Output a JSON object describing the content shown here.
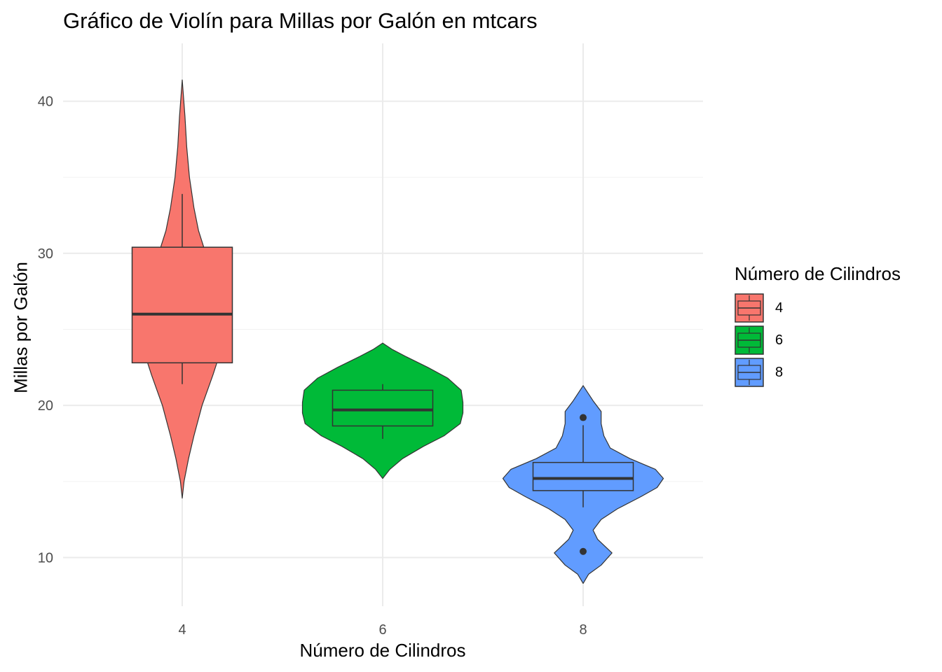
{
  "chart_data": {
    "type": "violin",
    "title": "Gráfico de Violín para Millas por Galón en mtcars",
    "xlabel": "Número de Cilindros",
    "ylabel": "Millas por Galón",
    "categories": [
      "4",
      "6",
      "8"
    ],
    "ylim": [
      6.8,
      43.8
    ],
    "yticks": [
      10,
      20,
      30,
      40
    ],
    "grid": true,
    "legend": {
      "title": "Número de Cilindros",
      "placement": "right",
      "entries": [
        "4",
        "6",
        "8"
      ]
    },
    "series": [
      {
        "category": "4",
        "color": "#F8766D",
        "box": {
          "lower_whisker": 21.4,
          "q1": 22.8,
          "median": 26.0,
          "q3": 30.4,
          "upper_whisker": 33.9
        },
        "outliers": [],
        "density": [
          [
            13.9,
            0
          ],
          [
            15.0,
            0.02
          ],
          [
            16.5,
            0.07
          ],
          [
            18.0,
            0.13
          ],
          [
            20.0,
            0.22
          ],
          [
            22.0,
            0.34
          ],
          [
            24.0,
            0.45
          ],
          [
            26.0,
            0.45
          ],
          [
            28.0,
            0.36
          ],
          [
            30.0,
            0.26
          ],
          [
            31.5,
            0.18
          ],
          [
            33.0,
            0.13
          ],
          [
            35.0,
            0.08
          ],
          [
            37.0,
            0.05
          ],
          [
            39.0,
            0.03
          ],
          [
            41.4,
            0
          ]
        ]
      },
      {
        "category": "6",
        "color": "#00BA38",
        "box": {
          "lower_whisker": 17.8,
          "q1": 18.65,
          "median": 19.7,
          "q3": 21.0,
          "upper_whisker": 21.4
        },
        "outliers": [],
        "density": [
          [
            15.2,
            0
          ],
          [
            15.8,
            0.08
          ],
          [
            16.5,
            0.22
          ],
          [
            17.3,
            0.45
          ],
          [
            18.0,
            0.68
          ],
          [
            18.8,
            0.86
          ],
          [
            19.5,
            0.89
          ],
          [
            20.2,
            0.89
          ],
          [
            21.0,
            0.87
          ],
          [
            21.8,
            0.72
          ],
          [
            22.5,
            0.5
          ],
          [
            23.2,
            0.26
          ],
          [
            23.7,
            0.1
          ],
          [
            24.1,
            0
          ]
        ]
      },
      {
        "category": "8",
        "color": "#619CFF",
        "box": {
          "lower_whisker": 13.3,
          "q1": 14.4,
          "median": 15.2,
          "q3": 16.25,
          "upper_whisker": 18.7
        },
        "outliers": [
          10.4,
          19.2
        ],
        "density": [
          [
            8.3,
            0
          ],
          [
            8.9,
            0.06
          ],
          [
            9.5,
            0.2
          ],
          [
            10.3,
            0.32
          ],
          [
            11.2,
            0.16
          ],
          [
            11.8,
            0.11
          ],
          [
            12.5,
            0.2
          ],
          [
            13.2,
            0.38
          ],
          [
            14.0,
            0.64
          ],
          [
            14.6,
            0.82
          ],
          [
            15.2,
            0.89
          ],
          [
            15.8,
            0.8
          ],
          [
            16.5,
            0.52
          ],
          [
            17.2,
            0.3
          ],
          [
            18.0,
            0.23
          ],
          [
            18.8,
            0.2
          ],
          [
            19.6,
            0.2
          ],
          [
            20.3,
            0.11
          ],
          [
            21.3,
            0
          ]
        ]
      }
    ]
  }
}
